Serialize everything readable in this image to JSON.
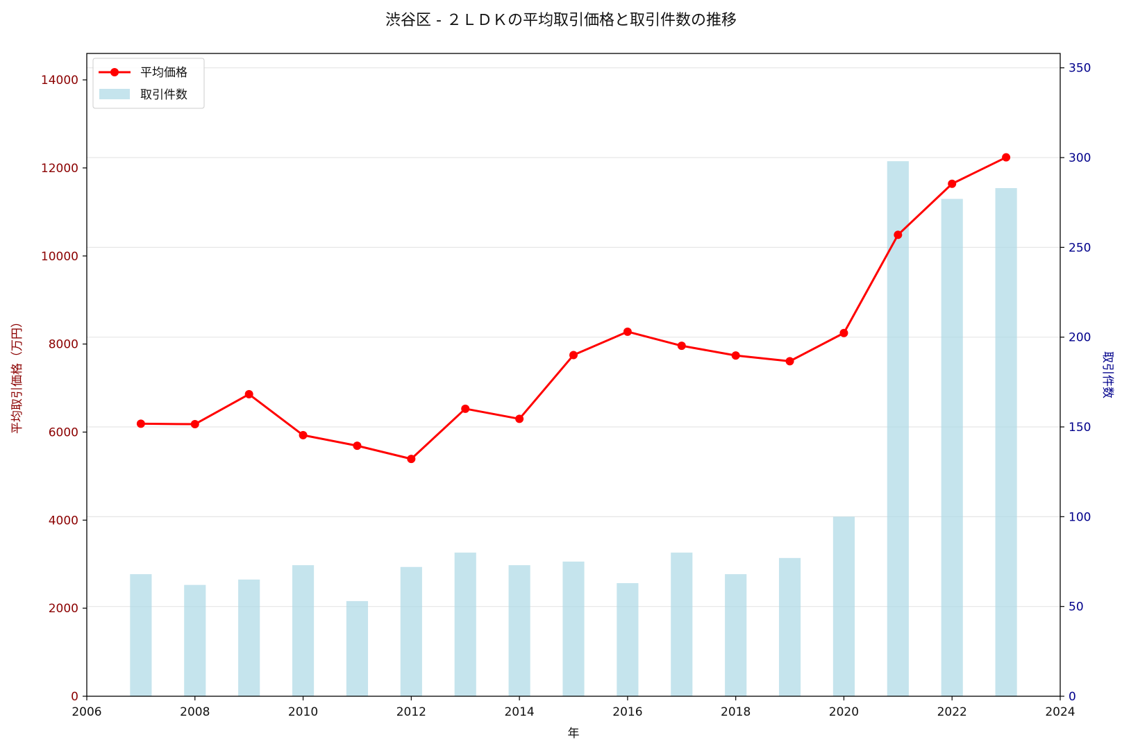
{
  "chart_data": {
    "type": "bar+line",
    "title": "渋谷区 - ２ＬＤＫの平均取引価格と取引件数の推移",
    "xlabel": "年",
    "ylabel_left": "平均取引価格（万円）",
    "ylabel_right": "取引件数",
    "xlim": [
      2006,
      2024
    ],
    "ylim_left": [
      0,
      14600
    ],
    "ylim_right": [
      0,
      358
    ],
    "x_ticks": [
      "2006",
      "2008",
      "2010",
      "2012",
      "2014",
      "2016",
      "2018",
      "2020",
      "2022",
      "2024"
    ],
    "y_left_ticks": [
      "0",
      "2000",
      "4000",
      "6000",
      "8000",
      "10000",
      "12000",
      "14000"
    ],
    "y_right_ticks": [
      "0",
      "50",
      "100",
      "150",
      "200",
      "250",
      "300",
      "350"
    ],
    "grid": "horizontal (right axis)",
    "legend_position": "top-left",
    "x": [
      2007,
      2008,
      2009,
      2010,
      2011,
      2012,
      2013,
      2014,
      2015,
      2016,
      2017,
      2018,
      2019,
      2020,
      2021,
      2022,
      2023
    ],
    "series": [
      {
        "name": "平均価格",
        "type": "line",
        "axis": "left",
        "color": "#ff0000",
        "values": [
          6190,
          6180,
          6860,
          5930,
          5690,
          5390,
          6530,
          6300,
          7750,
          8280,
          7960,
          7740,
          7610,
          8250,
          10480,
          11640,
          12240
        ]
      },
      {
        "name": "取引件数",
        "type": "bar",
        "axis": "right",
        "color": "#add8e6",
        "values": [
          68,
          62,
          65,
          73,
          53,
          72,
          80,
          73,
          75,
          63,
          80,
          68,
          77,
          100,
          298,
          277,
          283
        ]
      }
    ]
  }
}
